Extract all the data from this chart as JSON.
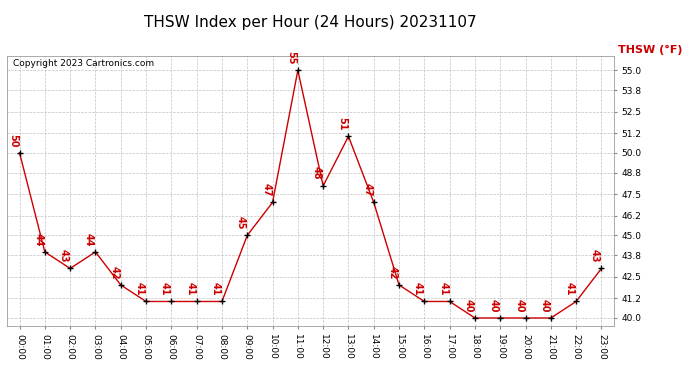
{
  "title": "THSW Index per Hour (24 Hours) 20231107",
  "copyright": "Copyright 2023 Cartronics.com",
  "legend_label": "THSW (°F)",
  "hours": [
    0,
    1,
    2,
    3,
    4,
    5,
    6,
    7,
    8,
    9,
    10,
    11,
    12,
    13,
    14,
    15,
    16,
    17,
    18,
    19,
    20,
    21,
    22,
    23
  ],
  "x_labels": [
    "00:00",
    "01:00",
    "02:00",
    "03:00",
    "04:00",
    "05:00",
    "06:00",
    "07:00",
    "08:00",
    "09:00",
    "10:00",
    "11:00",
    "12:00",
    "13:00",
    "14:00",
    "15:00",
    "16:00",
    "17:00",
    "18:00",
    "19:00",
    "20:00",
    "21:00",
    "22:00",
    "23:00"
  ],
  "values": [
    50,
    44,
    43,
    44,
    42,
    41,
    41,
    41,
    41,
    45,
    47,
    55,
    48,
    51,
    47,
    42,
    41,
    41,
    40,
    40,
    40,
    40,
    41,
    43
  ],
  "line_color": "#cc0000",
  "marker_color": "#000000",
  "label_color": "#cc0000",
  "background_color": "#ffffff",
  "grid_color": "#bbbbbb",
  "title_color": "#000000",
  "copyright_color": "#000000",
  "legend_color": "#cc0000",
  "ylim_min": 39.5,
  "ylim_max": 55.85,
  "yticks": [
    40.0,
    41.2,
    42.5,
    43.8,
    45.0,
    46.2,
    47.5,
    48.8,
    50.0,
    51.2,
    52.5,
    53.8,
    55.0
  ],
  "title_fontsize": 11,
  "label_fontsize": 7,
  "tick_fontsize": 6.5,
  "legend_fontsize": 8,
  "copyright_fontsize": 6.5
}
